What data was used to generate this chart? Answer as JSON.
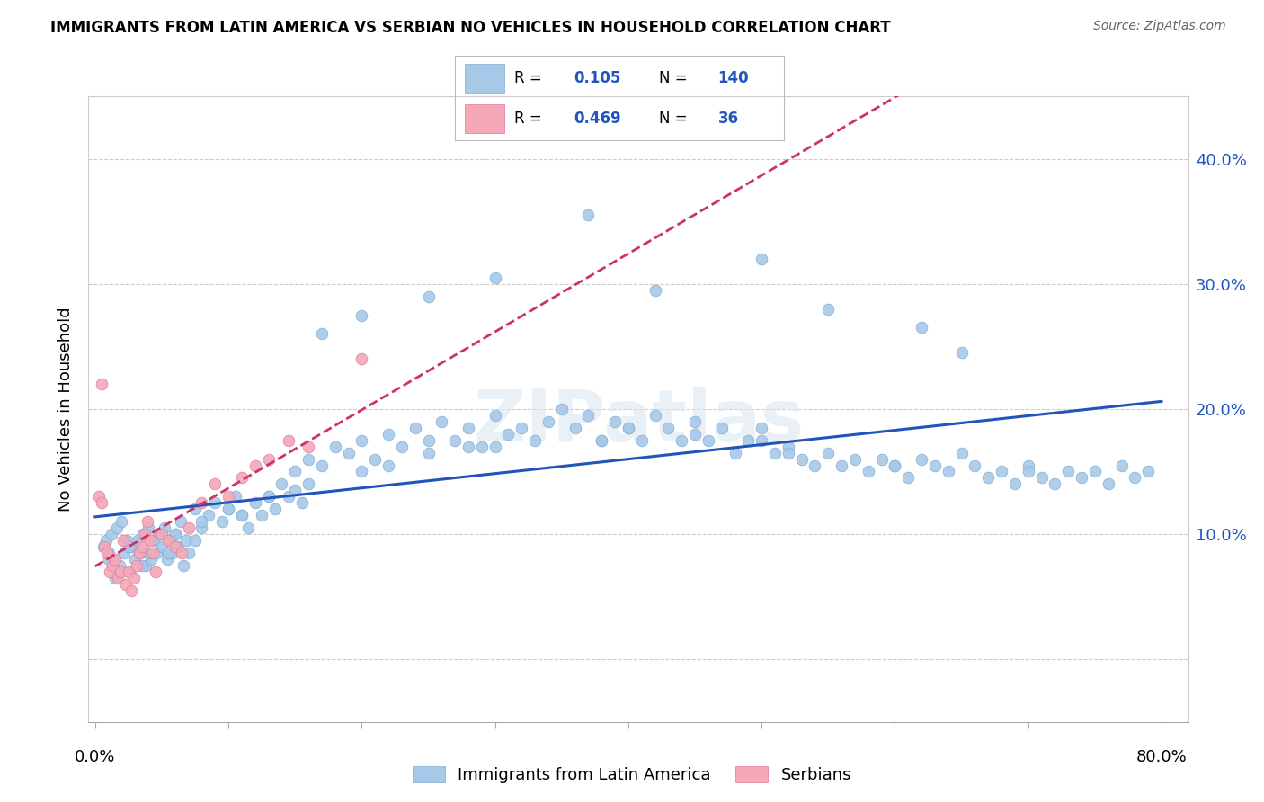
{
  "title": "IMMIGRANTS FROM LATIN AMERICA VS SERBIAN NO VEHICLES IN HOUSEHOLD CORRELATION CHART",
  "source": "Source: ZipAtlas.com",
  "ylabel": "No Vehicles in Household",
  "yticks": [
    0.0,
    0.1,
    0.2,
    0.3,
    0.4
  ],
  "ytick_labels": [
    "",
    "10.0%",
    "20.0%",
    "30.0%",
    "40.0%"
  ],
  "xlim": [
    -0.005,
    0.82
  ],
  "ylim": [
    -0.05,
    0.45
  ],
  "latin_color": "#a8c8e8",
  "latin_edge_color": "#7aadd4",
  "serbian_color": "#f4a8b8",
  "serbian_edge_color": "#e07898",
  "latin_line_color": "#2255bb",
  "serbian_line_color": "#cc3366",
  "watermark": "ZIPatlas",
  "latin_R": 0.105,
  "latin_N": 140,
  "serbian_R": 0.469,
  "serbian_N": 36,
  "latin_x": [
    0.006,
    0.008,
    0.01,
    0.012,
    0.014,
    0.016,
    0.018,
    0.02,
    0.022,
    0.024,
    0.026,
    0.028,
    0.03,
    0.032,
    0.034,
    0.036,
    0.038,
    0.04,
    0.042,
    0.044,
    0.046,
    0.048,
    0.05,
    0.052,
    0.054,
    0.056,
    0.058,
    0.06,
    0.062,
    0.064,
    0.066,
    0.068,
    0.07,
    0.075,
    0.08,
    0.085,
    0.09,
    0.095,
    0.1,
    0.105,
    0.11,
    0.115,
    0.12,
    0.125,
    0.13,
    0.135,
    0.14,
    0.145,
    0.15,
    0.155,
    0.16,
    0.17,
    0.18,
    0.19,
    0.2,
    0.21,
    0.22,
    0.23,
    0.24,
    0.25,
    0.26,
    0.27,
    0.28,
    0.29,
    0.3,
    0.31,
    0.32,
    0.33,
    0.34,
    0.35,
    0.36,
    0.37,
    0.38,
    0.39,
    0.4,
    0.41,
    0.42,
    0.43,
    0.44,
    0.45,
    0.46,
    0.47,
    0.48,
    0.49,
    0.5,
    0.51,
    0.52,
    0.53,
    0.54,
    0.55,
    0.56,
    0.57,
    0.58,
    0.59,
    0.6,
    0.61,
    0.62,
    0.63,
    0.64,
    0.65,
    0.66,
    0.67,
    0.68,
    0.69,
    0.7,
    0.71,
    0.72,
    0.73,
    0.74,
    0.75,
    0.76,
    0.77,
    0.78,
    0.79,
    0.01,
    0.025,
    0.04,
    0.06,
    0.08,
    0.1,
    0.13,
    0.16,
    0.2,
    0.25,
    0.3,
    0.38,
    0.45,
    0.52,
    0.6,
    0.7,
    0.015,
    0.035,
    0.055,
    0.075,
    0.11,
    0.15,
    0.22,
    0.28,
    0.4,
    0.5
  ],
  "latin_y": [
    0.09,
    0.095,
    0.085,
    0.1,
    0.08,
    0.105,
    0.075,
    0.11,
    0.085,
    0.095,
    0.07,
    0.09,
    0.08,
    0.095,
    0.085,
    0.1,
    0.075,
    0.105,
    0.08,
    0.095,
    0.085,
    0.1,
    0.09,
    0.105,
    0.08,
    0.095,
    0.085,
    0.1,
    0.09,
    0.11,
    0.075,
    0.095,
    0.085,
    0.12,
    0.105,
    0.115,
    0.125,
    0.11,
    0.12,
    0.13,
    0.115,
    0.105,
    0.125,
    0.115,
    0.13,
    0.12,
    0.14,
    0.13,
    0.15,
    0.125,
    0.16,
    0.155,
    0.17,
    0.165,
    0.175,
    0.16,
    0.18,
    0.17,
    0.185,
    0.175,
    0.19,
    0.175,
    0.185,
    0.17,
    0.195,
    0.18,
    0.185,
    0.175,
    0.19,
    0.2,
    0.185,
    0.195,
    0.175,
    0.19,
    0.185,
    0.175,
    0.195,
    0.185,
    0.175,
    0.19,
    0.175,
    0.185,
    0.165,
    0.175,
    0.185,
    0.165,
    0.17,
    0.16,
    0.155,
    0.165,
    0.155,
    0.16,
    0.15,
    0.16,
    0.155,
    0.145,
    0.16,
    0.155,
    0.15,
    0.165,
    0.155,
    0.145,
    0.15,
    0.14,
    0.155,
    0.145,
    0.14,
    0.15,
    0.145,
    0.15,
    0.14,
    0.155,
    0.145,
    0.15,
    0.08,
    0.09,
    0.085,
    0.1,
    0.11,
    0.12,
    0.13,
    0.14,
    0.15,
    0.165,
    0.17,
    0.175,
    0.18,
    0.165,
    0.155,
    0.15,
    0.065,
    0.075,
    0.085,
    0.095,
    0.115,
    0.135,
    0.155,
    0.17,
    0.185,
    0.175
  ],
  "latin_outliers_x": [
    0.37,
    0.5,
    0.42,
    0.55,
    0.62,
    0.65,
    0.3,
    0.25,
    0.2,
    0.17
  ],
  "latin_outliers_y": [
    0.355,
    0.32,
    0.295,
    0.28,
    0.265,
    0.245,
    0.305,
    0.29,
    0.275,
    0.26
  ],
  "serbian_x": [
    0.003,
    0.005,
    0.007,
    0.009,
    0.011,
    0.013,
    0.015,
    0.017,
    0.019,
    0.021,
    0.023,
    0.025,
    0.027,
    0.029,
    0.031,
    0.033,
    0.035,
    0.037,
    0.039,
    0.041,
    0.043,
    0.045,
    0.05,
    0.055,
    0.06,
    0.065,
    0.07,
    0.08,
    0.09,
    0.1,
    0.11,
    0.12,
    0.13,
    0.145,
    0.16,
    0.2
  ],
  "serbian_y": [
    0.13,
    0.125,
    0.09,
    0.085,
    0.07,
    0.075,
    0.08,
    0.065,
    0.07,
    0.095,
    0.06,
    0.07,
    0.055,
    0.065,
    0.075,
    0.085,
    0.09,
    0.1,
    0.11,
    0.095,
    0.085,
    0.07,
    0.1,
    0.095,
    0.09,
    0.085,
    0.105,
    0.125,
    0.14,
    0.13,
    0.145,
    0.155,
    0.16,
    0.175,
    0.17,
    0.24
  ],
  "serbian_outlier_x": [
    0.005
  ],
  "serbian_outlier_y": [
    0.22
  ]
}
